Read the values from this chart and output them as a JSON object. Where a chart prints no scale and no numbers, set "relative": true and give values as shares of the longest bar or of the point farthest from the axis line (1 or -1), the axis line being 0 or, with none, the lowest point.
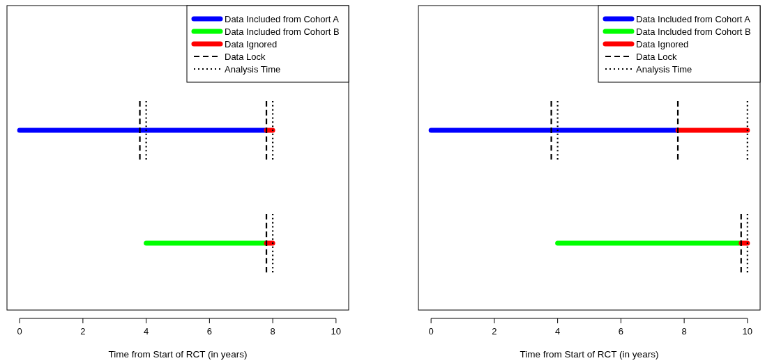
{
  "chart_data": [
    {
      "type": "line",
      "relative": true,
      "xlabel": "Time from Start of RCT (in years)",
      "xlim": [
        -0.4,
        10.4
      ],
      "xticks": [
        0,
        2,
        4,
        6,
        8,
        10
      ],
      "legend": "top right",
      "series": [
        {
          "name": "Data Included from Cohort A",
          "color": "#0000ff",
          "line_style": "solid",
          "x": [
            0,
            7.8
          ],
          "values": [
            0.86,
            0.86
          ]
        },
        {
          "name": "Data Included from Cohort B",
          "color": "#00ff00",
          "line_style": "solid",
          "x": [
            4,
            7.8
          ],
          "values": [
            0.32,
            0.32
          ]
        },
        {
          "name": "Data Ignored",
          "color": "#ff0000",
          "line_style": "solid",
          "x": [
            7.8,
            8
          ],
          "values": [
            0.86,
            0.86
          ]
        },
        {
          "color": "#ff0000",
          "line_style": "solid",
          "x": [
            7.8,
            8
          ],
          "values": [
            0.32,
            0.32
          ]
        },
        {
          "name": "Data Lock",
          "color": "#000000",
          "line_style": "dashed",
          "x": [
            3.8,
            3.8
          ],
          "values": [
            0.72,
            1
          ]
        },
        {
          "color": "#000000",
          "line_style": "dashed",
          "x": [
            7.8,
            7.8
          ],
          "values": [
            0.72,
            1
          ]
        },
        {
          "color": "#000000",
          "line_style": "dashed",
          "x": [
            7.8,
            7.8
          ],
          "values": [
            0.18,
            0.46
          ]
        },
        {
          "name": "Analysis Time",
          "color": "#000000",
          "line_style": "dotted",
          "x": [
            4,
            4
          ],
          "values": [
            0.72,
            1
          ]
        },
        {
          "color": "#000000",
          "line_style": "dotted",
          "x": [
            8,
            8
          ],
          "values": [
            0.72,
            1
          ]
        },
        {
          "color": "#000000",
          "line_style": "dotted",
          "x": [
            8,
            8
          ],
          "values": [
            0.18,
            0.46
          ]
        }
      ]
    },
    {
      "type": "line",
      "relative": true,
      "xlabel": "Time from Start of RCT (in years)",
      "xlim": [
        -0.4,
        10.4
      ],
      "xticks": [
        0,
        2,
        4,
        6,
        8,
        10
      ],
      "legend": "top right",
      "series": [
        {
          "name": "Data Included from Cohort A",
          "color": "#0000ff",
          "line_style": "solid",
          "x": [
            0,
            7.8
          ],
          "values": [
            0.86,
            0.86
          ]
        },
        {
          "name": "Data Included from Cohort B",
          "color": "#00ff00",
          "line_style": "solid",
          "x": [
            4,
            9.8
          ],
          "values": [
            0.32,
            0.32
          ]
        },
        {
          "name": "Data Ignored",
          "color": "#ff0000",
          "line_style": "solid",
          "x": [
            7.8,
            10
          ],
          "values": [
            0.86,
            0.86
          ]
        },
        {
          "color": "#ff0000",
          "line_style": "solid",
          "x": [
            9.8,
            10
          ],
          "values": [
            0.32,
            0.32
          ]
        },
        {
          "name": "Data Lock",
          "color": "#000000",
          "line_style": "dashed",
          "x": [
            3.8,
            3.8
          ],
          "values": [
            0.72,
            1
          ]
        },
        {
          "color": "#000000",
          "line_style": "dashed",
          "x": [
            7.8,
            7.8
          ],
          "values": [
            0.72,
            1
          ]
        },
        {
          "color": "#000000",
          "line_style": "dashed",
          "x": [
            9.8,
            9.8
          ],
          "values": [
            0.18,
            0.46
          ]
        },
        {
          "name": "Analysis Time",
          "color": "#000000",
          "line_style": "dotted",
          "x": [
            4,
            4
          ],
          "values": [
            0.72,
            1
          ]
        },
        {
          "color": "#000000",
          "line_style": "dotted",
          "x": [
            10,
            10
          ],
          "values": [
            0.72,
            1
          ]
        },
        {
          "color": "#000000",
          "line_style": "dotted",
          "x": [
            10,
            10
          ],
          "values": [
            0.18,
            0.46
          ]
        }
      ]
    }
  ]
}
